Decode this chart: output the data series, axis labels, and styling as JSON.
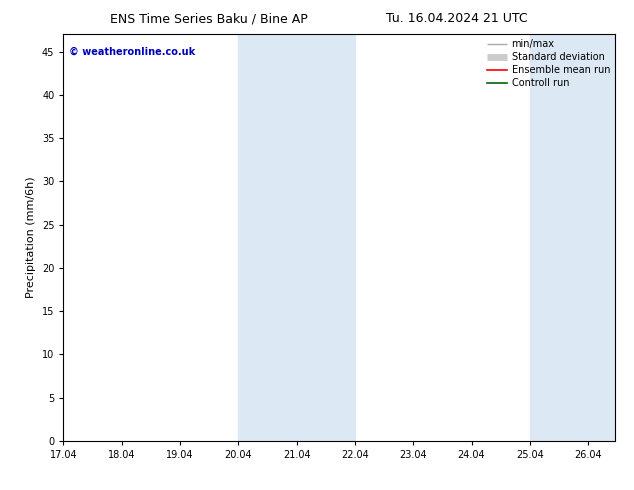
{
  "title_left": "ENS Time Series Baku / Bine AP",
  "title_right": "Tu. 16.04.2024 21 UTC",
  "ylabel": "Precipitation (mm/6h)",
  "xlabel": "",
  "xlim": [
    17.04,
    26.5
  ],
  "ylim": [
    0,
    47
  ],
  "yticks": [
    0,
    5,
    10,
    15,
    20,
    25,
    30,
    35,
    40,
    45
  ],
  "xtick_labels": [
    "17.04",
    "18.04",
    "19.04",
    "20.04",
    "21.04",
    "22.04",
    "23.04",
    "24.04",
    "25.04",
    "26.04"
  ],
  "xtick_positions": [
    17.04,
    18.04,
    19.04,
    20.04,
    21.04,
    22.04,
    23.04,
    24.04,
    25.04,
    26.04
  ],
  "shaded_regions": [
    {
      "xmin": 20.04,
      "xmax": 22.04
    },
    {
      "xmin": 25.04,
      "xmax": 26.5
    }
  ],
  "shade_color": "#dce9f5",
  "watermark": "© weatheronline.co.uk",
  "watermark_color": "#0000bb",
  "legend_items": [
    {
      "label": "min/max",
      "color": "#aaaaaa",
      "lw": 1.0
    },
    {
      "label": "Standard deviation",
      "color": "#cccccc",
      "lw": 5
    },
    {
      "label": "Ensemble mean run",
      "color": "#ff0000",
      "lw": 1.2
    },
    {
      "label": "Controll run",
      "color": "#006600",
      "lw": 1.2
    }
  ],
  "background_color": "#ffffff",
  "title_fontsize": 9,
  "tick_fontsize": 7,
  "ylabel_fontsize": 8,
  "legend_fontsize": 7
}
